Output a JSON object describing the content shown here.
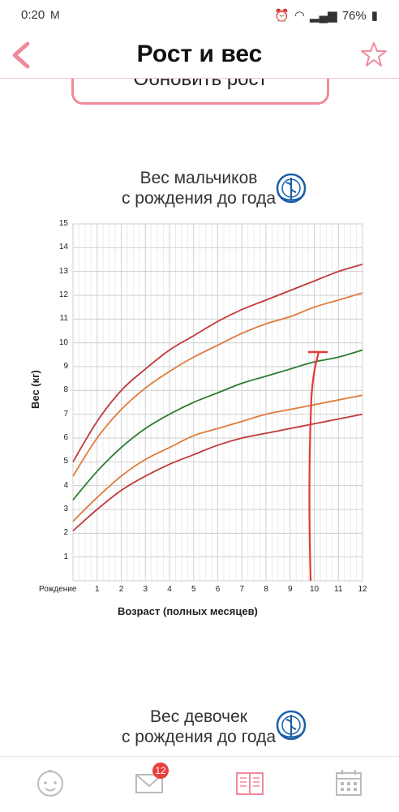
{
  "status_bar": {
    "time": "0:20",
    "battery": "76%"
  },
  "header": {
    "title": "Рост и вес"
  },
  "update_button": {
    "label": "Обновить рост"
  },
  "chart1": {
    "title_line1": "Вес мальчиков",
    "title_line2": "с рождения до года"
  },
  "chart2": {
    "title_line1": "Вес девочек",
    "title_line2": "с рождения до года"
  },
  "nav": {
    "messages_badge": "12"
  },
  "colors": {
    "accent": "#f08a9b",
    "red": "#c0393b",
    "orange": "#e07a3a",
    "green": "#2e7d32",
    "annotation": "#e53935"
  },
  "chart_data": {
    "type": "line",
    "title": "Вес мальчиков с рождения до года",
    "xlabel": "Возраст (полных месяцев)",
    "ylabel": "Вес (кг)",
    "xlim": [
      0,
      12
    ],
    "ylim": [
      0,
      15
    ],
    "x_tick_labels": [
      "Рождение",
      "1",
      "2",
      "3",
      "4",
      "5",
      "6",
      "7",
      "8",
      "9",
      "10",
      "11",
      "12"
    ],
    "y_tick_labels": [
      "1",
      "2",
      "3",
      "4",
      "5",
      "6",
      "7",
      "8",
      "9",
      "10",
      "11",
      "12",
      "13",
      "14",
      "15"
    ],
    "x": [
      0,
      1,
      2,
      3,
      4,
      5,
      6,
      7,
      8,
      9,
      10,
      11,
      12
    ],
    "series": [
      {
        "color": "#c0393b",
        "values": [
          5.0,
          6.7,
          8.0,
          8.9,
          9.7,
          10.3,
          10.9,
          11.4,
          11.8,
          12.2,
          12.6,
          13.0,
          13.3
        ]
      },
      {
        "color": "#e07a3a",
        "values": [
          4.4,
          6.0,
          7.2,
          8.1,
          8.8,
          9.4,
          9.9,
          10.4,
          10.8,
          11.1,
          11.5,
          11.8,
          12.1
        ]
      },
      {
        "color": "#2e7d32",
        "values": [
          3.4,
          4.6,
          5.6,
          6.4,
          7.0,
          7.5,
          7.9,
          8.3,
          8.6,
          8.9,
          9.2,
          9.4,
          9.7
        ]
      },
      {
        "color": "#e07a3a",
        "values": [
          2.5,
          3.5,
          4.4,
          5.1,
          5.6,
          6.1,
          6.4,
          6.7,
          7.0,
          7.2,
          7.4,
          7.6,
          7.8
        ]
      },
      {
        "color": "#c0393b",
        "values": [
          2.1,
          3.0,
          3.8,
          4.4,
          4.9,
          5.3,
          5.7,
          6.0,
          6.2,
          6.4,
          6.6,
          6.8,
          7.0
        ]
      }
    ],
    "grid": true
  }
}
